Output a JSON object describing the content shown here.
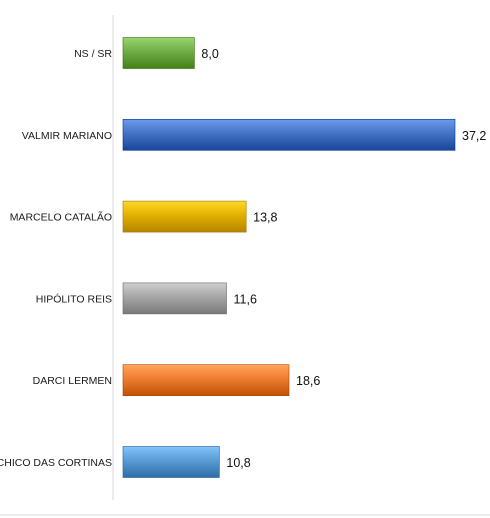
{
  "chart_data": {
    "type": "bar",
    "orientation": "horizontal",
    "categories": [
      "NS / SR",
      "VALMIR MARIANO",
      "MARCELO CATALÃO",
      "HIPÓLITO REIS",
      "DARCI LERMEN",
      "CHICO DAS CORTINAS"
    ],
    "values": [
      8.0,
      37.2,
      13.8,
      11.6,
      18.6,
      10.8
    ],
    "value_labels": [
      "8,0",
      "37,2",
      "13,8",
      "11,6",
      "18,6",
      "10,8"
    ],
    "colors": [
      "#70AD47",
      "#4472C4",
      "#E2B100",
      "#A6A6A6",
      "#ED7D31",
      "#5B9BD5"
    ],
    "title": "",
    "xlabel": "",
    "ylabel": "",
    "xlim": [
      0,
      40
    ],
    "grid": false,
    "legend": "none"
  }
}
